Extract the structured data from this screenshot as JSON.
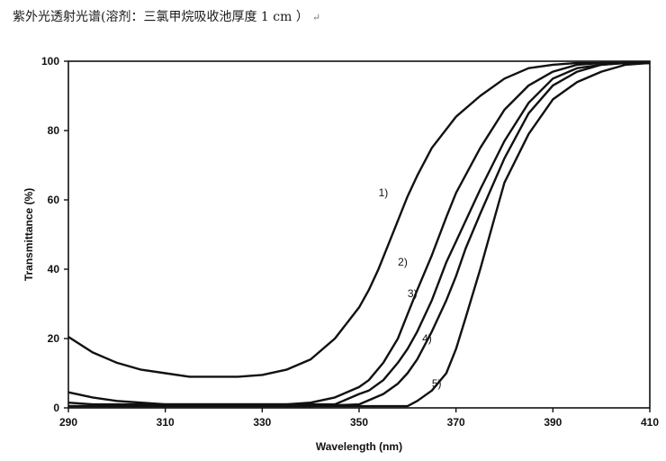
{
  "caption": {
    "text": "紫外光透射光谱(溶剂：三氯甲烷吸收池厚度 1 cm ）",
    "return_mark": "↵"
  },
  "chart_data": {
    "type": "line",
    "title": "",
    "xlabel": "Wavelength (nm)",
    "ylabel": "Transmittance (%)",
    "xlim": [
      290,
      410
    ],
    "ylim": [
      0,
      100
    ],
    "x_ticks": [
      290,
      310,
      330,
      350,
      370,
      390,
      410
    ],
    "y_ticks": [
      0,
      20,
      40,
      60,
      80,
      100
    ],
    "grid": false,
    "legend": "none",
    "line_color": "#111111",
    "series": [
      {
        "name": "1)",
        "label_at": [
          356,
          61
        ],
        "x": [
          290,
          295,
          300,
          305,
          310,
          315,
          320,
          325,
          330,
          335,
          340,
          345,
          350,
          352,
          354,
          356,
          358,
          360,
          362,
          365,
          370,
          375,
          380,
          385,
          390,
          395,
          400,
          405,
          410
        ],
        "y": [
          20.5,
          16,
          13,
          11,
          10,
          9,
          9,
          9,
          9.5,
          11,
          14,
          20,
          29,
          34,
          40,
          47,
          54,
          61,
          67,
          75,
          84,
          90,
          95,
          98,
          99,
          99.5,
          99.5,
          99.5,
          99.5
        ]
      },
      {
        "name": "2)",
        "label_at": [
          360,
          41
        ],
        "x": [
          290,
          295,
          300,
          305,
          310,
          320,
          330,
          335,
          340,
          345,
          350,
          352,
          355,
          358,
          360,
          362,
          365,
          368,
          370,
          375,
          380,
          385,
          390,
          395,
          400,
          405,
          410
        ],
        "y": [
          4.5,
          3,
          2,
          1.5,
          1,
          1,
          1,
          1,
          1.5,
          3,
          6,
          8,
          13,
          20,
          27,
          34,
          44,
          55,
          62,
          75,
          86,
          93,
          97,
          99,
          99.5,
          99.5,
          99.5
        ]
      },
      {
        "name": "3)",
        "label_at": [
          362,
          32
        ],
        "x": [
          290,
          295,
          300,
          310,
          320,
          330,
          340,
          345,
          350,
          352,
          355,
          358,
          360,
          362,
          365,
          368,
          370,
          375,
          380,
          385,
          390,
          395,
          400,
          405,
          410
        ],
        "y": [
          1.5,
          1,
          1,
          1,
          1,
          1,
          1,
          1,
          4,
          5,
          8,
          13,
          17,
          22,
          31,
          42,
          48,
          63,
          77,
          88,
          95,
          98,
          99,
          99.5,
          99.5
        ]
      },
      {
        "name": "4)",
        "label_at": [
          365,
          19
        ],
        "x": [
          290,
          300,
          310,
          320,
          330,
          340,
          350,
          355,
          358,
          360,
          362,
          365,
          368,
          370,
          372,
          375,
          380,
          385,
          390,
          395,
          400,
          405,
          410
        ],
        "y": [
          0.5,
          0.5,
          0.5,
          0.5,
          0.5,
          0.5,
          1,
          4,
          7,
          10,
          14,
          22,
          31,
          38,
          46,
          56,
          72,
          85,
          93,
          97,
          99,
          99.5,
          99.5
        ]
      },
      {
        "name": "5)",
        "label_at": [
          367,
          6
        ],
        "x": [
          290,
          300,
          310,
          320,
          330,
          340,
          350,
          355,
          360,
          362,
          365,
          368,
          370,
          372,
          375,
          378,
          380,
          385,
          390,
          395,
          400,
          405,
          410
        ],
        "y": [
          0.5,
          0.5,
          0.5,
          0.5,
          0.5,
          0.5,
          0.5,
          0.5,
          0.5,
          2,
          5,
          10,
          17,
          26,
          40,
          55,
          65,
          79,
          89,
          94,
          97,
          99,
          99.5
        ]
      }
    ]
  }
}
